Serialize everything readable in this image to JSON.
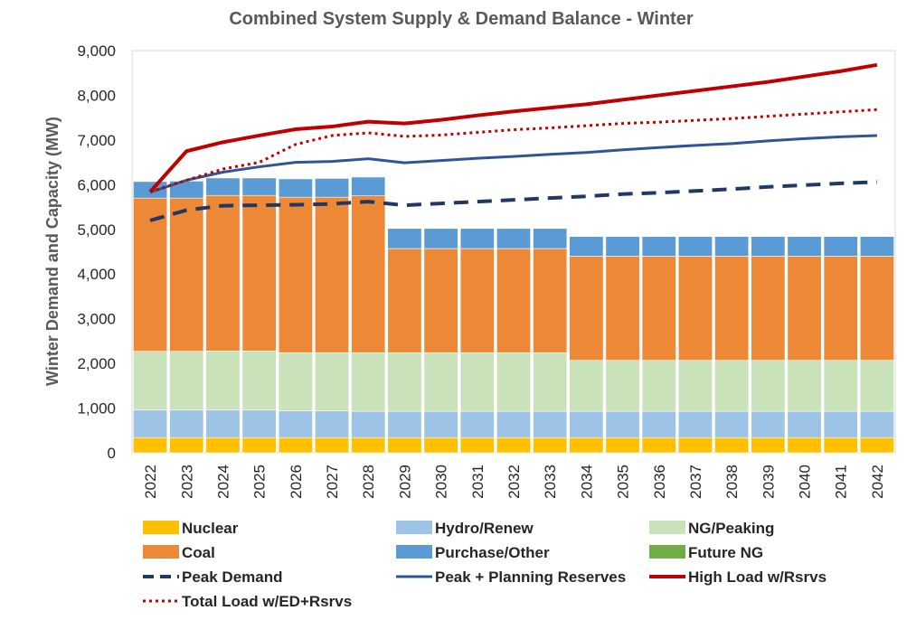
{
  "chart_data": {
    "type": "bar",
    "title": "Combined System Supply & Demand Balance - Winter",
    "xlabel": "",
    "ylabel": "Winter Demand and Capacity (MW)",
    "ylim": [
      0,
      9000
    ],
    "yticks": [
      "0",
      "1,000",
      "2,000",
      "3,000",
      "4,000",
      "5,000",
      "6,000",
      "7,000",
      "8,000",
      "9,000"
    ],
    "grid": false,
    "legend_position": "bottom",
    "stacked": true,
    "categories": [
      "2022",
      "2023",
      "2024",
      "2025",
      "2026",
      "2027",
      "2028",
      "2029",
      "2030",
      "2031",
      "2032",
      "2033",
      "2034",
      "2035",
      "2036",
      "2037",
      "2038",
      "2039",
      "2040",
      "2041",
      "2042"
    ],
    "series": [
      {
        "name": "Nuclear",
        "kind": "bar",
        "color": "#FFC000",
        "values": [
          340,
          340,
          340,
          340,
          340,
          340,
          340,
          340,
          340,
          340,
          340,
          340,
          340,
          340,
          340,
          340,
          340,
          340,
          340,
          340,
          340
        ]
      },
      {
        "name": "Hydro/Renew",
        "kind": "bar",
        "color": "#9DC3E6",
        "values": [
          620,
          620,
          620,
          620,
          600,
          600,
          590,
          590,
          590,
          590,
          590,
          590,
          590,
          590,
          590,
          590,
          590,
          590,
          590,
          590,
          590
        ]
      },
      {
        "name": "NG/Peaking",
        "kind": "bar",
        "color": "#C9E2BA",
        "values": [
          1310,
          1310,
          1320,
          1320,
          1300,
          1300,
          1310,
          1310,
          1310,
          1310,
          1310,
          1310,
          1140,
          1140,
          1140,
          1140,
          1140,
          1140,
          1140,
          1140,
          1140
        ]
      },
      {
        "name": "Coal",
        "kind": "bar",
        "color": "#ED8936",
        "values": [
          3430,
          3430,
          3480,
          3480,
          3480,
          3480,
          3510,
          2330,
          2330,
          2330,
          2330,
          2330,
          2330,
          2330,
          2330,
          2330,
          2330,
          2330,
          2330,
          2330,
          2330
        ]
      },
      {
        "name": "Purchase/Other",
        "kind": "bar",
        "color": "#5B9BD5",
        "values": [
          370,
          380,
          390,
          390,
          410,
          420,
          420,
          450,
          450,
          450,
          450,
          450,
          440,
          440,
          440,
          440,
          440,
          440,
          440,
          440,
          440
        ]
      },
      {
        "name": "Future NG",
        "kind": "bar",
        "color": "#70AD47",
        "values": [
          0,
          0,
          0,
          0,
          0,
          0,
          0,
          0,
          0,
          0,
          0,
          0,
          0,
          0,
          0,
          0,
          0,
          0,
          0,
          0,
          0
        ]
      },
      {
        "name": "Peak Demand",
        "kind": "line",
        "style": "dashed",
        "color": "#1F3864",
        "values": [
          5200,
          5430,
          5530,
          5540,
          5550,
          5570,
          5620,
          5540,
          5580,
          5620,
          5660,
          5700,
          5740,
          5790,
          5820,
          5860,
          5900,
          5950,
          5990,
          6030,
          6060
        ]
      },
      {
        "name": "Peak + Planning Reserves",
        "kind": "line",
        "style": "solid",
        "color": "#2F5597",
        "values": [
          5830,
          6100,
          6280,
          6400,
          6500,
          6520,
          6580,
          6490,
          6540,
          6590,
          6630,
          6680,
          6720,
          6780,
          6830,
          6880,
          6920,
          6980,
          7030,
          7070,
          7100
        ]
      },
      {
        "name": "High Load w/Rsrvs",
        "kind": "line",
        "style": "solid",
        "color": "#C00000",
        "values": [
          5840,
          6750,
          6950,
          7100,
          7240,
          7300,
          7410,
          7370,
          7450,
          7550,
          7640,
          7720,
          7800,
          7900,
          8000,
          8100,
          8200,
          8300,
          8420,
          8540,
          8680
        ]
      },
      {
        "name": "Total Load w/ED+Rsrvs",
        "kind": "line",
        "style": "dotted",
        "color": "#C00000",
        "values": [
          5840,
          6100,
          6350,
          6500,
          6900,
          7100,
          7160,
          7080,
          7110,
          7170,
          7230,
          7270,
          7320,
          7370,
          7400,
          7440,
          7480,
          7530,
          7580,
          7630,
          7680
        ]
      }
    ]
  }
}
